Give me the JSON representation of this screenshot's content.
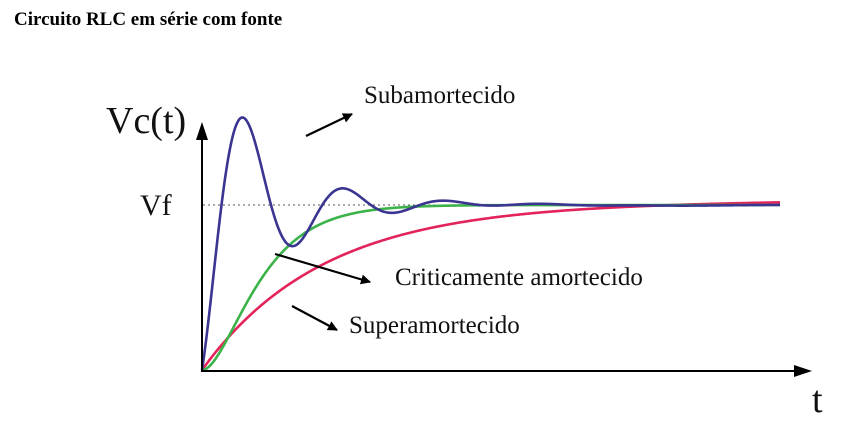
{
  "heading": "Circuito RLC em série com fonte",
  "diagram": {
    "y_axis_label": "Vc(t)",
    "x_axis_label": "t",
    "final_value_label": "Vf",
    "curves": [
      {
        "key": "under",
        "label": "Subamortecido",
        "color": "#3a3590"
      },
      {
        "key": "critical",
        "label": "Criticamente amortecido",
        "color": "#3bb34a"
      },
      {
        "key": "over",
        "label": "Superamortecido",
        "color": "#e3245a"
      }
    ]
  }
}
